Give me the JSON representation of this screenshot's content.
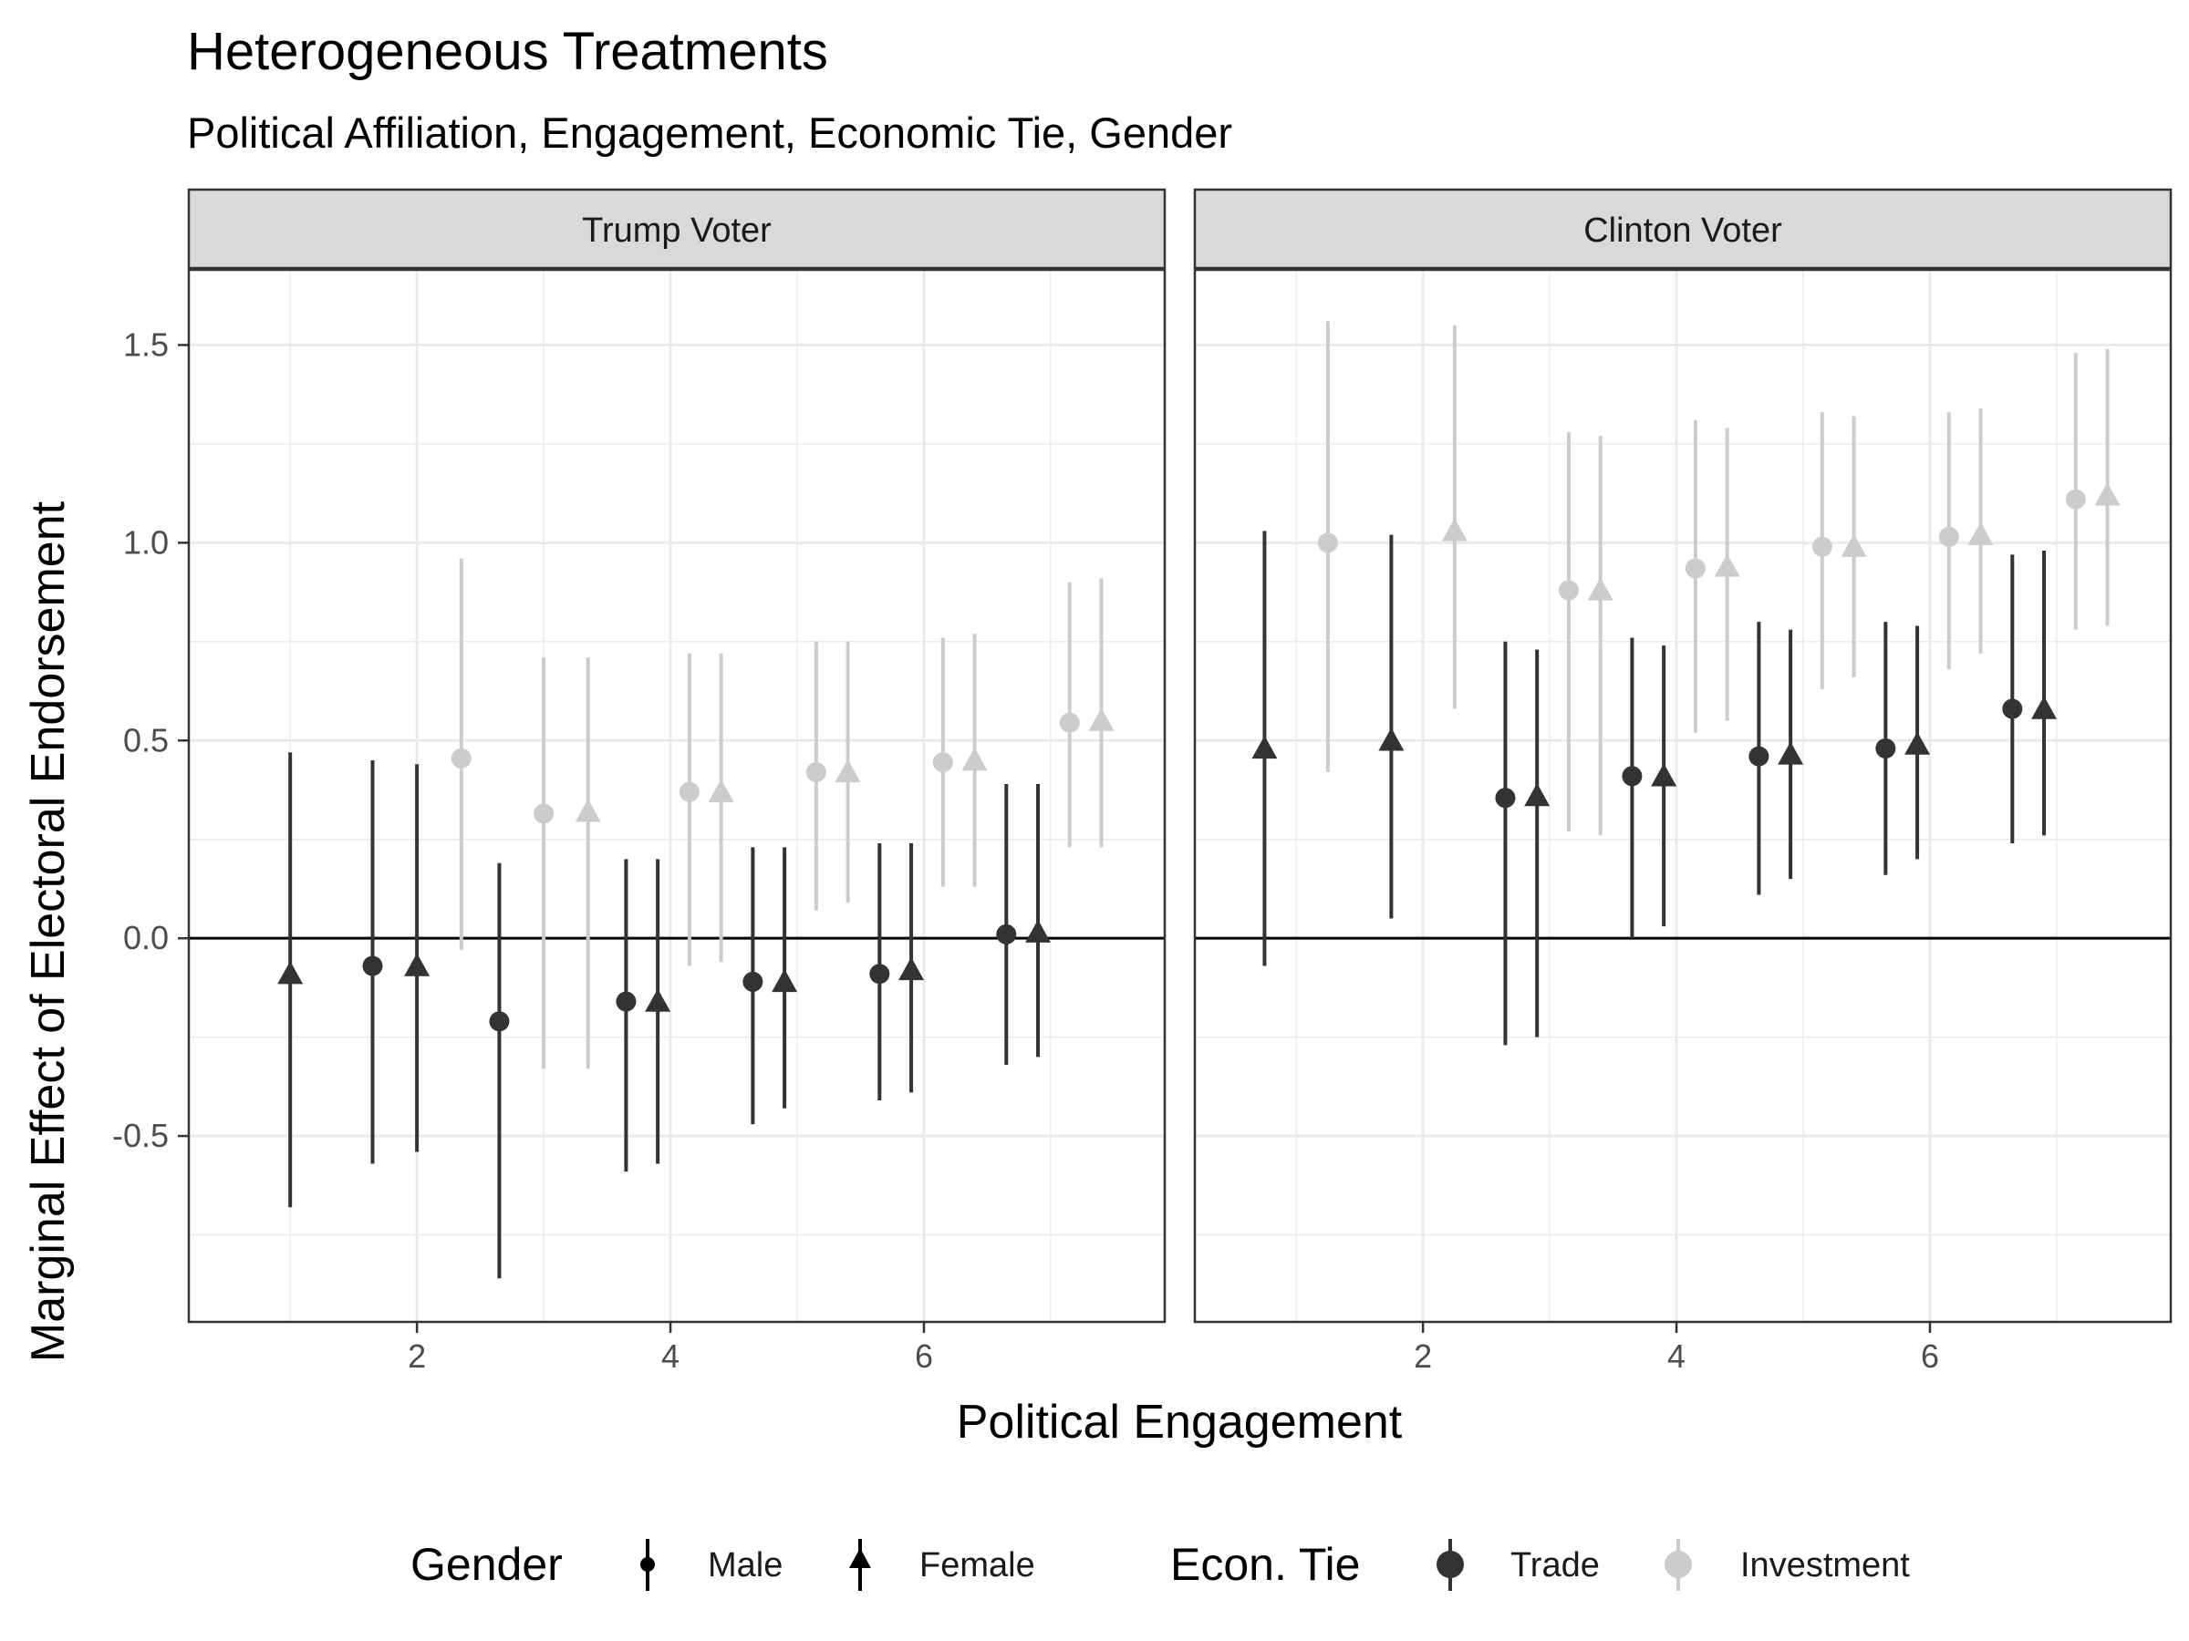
{
  "chart_data": {
    "type": "scatter",
    "title": "Heterogeneous Treatments",
    "subtitle": "Political Affiliation, Engagement, Economic Tie, Gender",
    "xlabel": "Political Engagement",
    "ylabel": "Marginal Effect of Electoral Endorsement",
    "xlim": [
      0.2,
      7.9
    ],
    "ylim": [
      -0.97,
      1.69
    ],
    "x_ticks": [
      2,
      4,
      6
    ],
    "y_ticks": [
      -0.5,
      0.0,
      0.5,
      1.0,
      1.5
    ],
    "x_tick_labels": [
      "2",
      "4",
      "6"
    ],
    "y_tick_labels": [
      "-0.5",
      "0.0",
      "0.5",
      "1.0",
      "1.5"
    ],
    "reference_line_y": 0,
    "grid": true,
    "legend_position": "bottom",
    "colors": {
      "Trade": "#333333",
      "Investment": "#cccccc"
    },
    "legend": {
      "gender_title": "Gender",
      "gender_items": [
        "Male",
        "Female"
      ],
      "econ_title": "Econ. Tie",
      "econ_items": [
        "Trade",
        "Investment"
      ]
    },
    "panels": [
      {
        "label": "Trump Voter",
        "points": [
          {
            "x": 1.0,
            "y": -0.09,
            "lo": -0.68,
            "hi": 0.47,
            "gender": "Female",
            "tie": "Trade"
          },
          {
            "x": 1.65,
            "y": -0.07,
            "lo": -0.57,
            "hi": 0.45,
            "gender": "Male",
            "tie": "Trade"
          },
          {
            "x": 2.0,
            "y": -0.07,
            "lo": -0.54,
            "hi": 0.44,
            "gender": "Female",
            "tie": "Trade"
          },
          {
            "x": 2.35,
            "y": 0.455,
            "lo": -0.03,
            "hi": 0.96,
            "gender": "Male",
            "tie": "Investment"
          },
          {
            "x": 2.65,
            "y": -0.21,
            "lo": -0.86,
            "hi": 0.19,
            "gender": "Male",
            "tie": "Trade"
          },
          {
            "x": 3.0,
            "y": 0.315,
            "lo": -0.33,
            "hi": 0.71,
            "gender": "Male",
            "tie": "Investment"
          },
          {
            "x": 3.35,
            "y": 0.32,
            "lo": -0.33,
            "hi": 0.71,
            "gender": "Female",
            "tie": "Investment"
          },
          {
            "x": 3.65,
            "y": -0.16,
            "lo": -0.59,
            "hi": 0.2,
            "gender": "Male",
            "tie": "Trade"
          },
          {
            "x": 3.9,
            "y": -0.16,
            "lo": -0.57,
            "hi": 0.2,
            "gender": "Female",
            "tie": "Trade"
          },
          {
            "x": 4.15,
            "y": 0.37,
            "lo": -0.07,
            "hi": 0.72,
            "gender": "Male",
            "tie": "Investment"
          },
          {
            "x": 4.4,
            "y": 0.37,
            "lo": -0.06,
            "hi": 0.72,
            "gender": "Female",
            "tie": "Investment"
          },
          {
            "x": 4.65,
            "y": -0.11,
            "lo": -0.47,
            "hi": 0.23,
            "gender": "Male",
            "tie": "Trade"
          },
          {
            "x": 4.9,
            "y": -0.11,
            "lo": -0.43,
            "hi": 0.23,
            "gender": "Female",
            "tie": "Trade"
          },
          {
            "x": 5.15,
            "y": 0.42,
            "lo": 0.07,
            "hi": 0.75,
            "gender": "Male",
            "tie": "Investment"
          },
          {
            "x": 5.4,
            "y": 0.42,
            "lo": 0.09,
            "hi": 0.75,
            "gender": "Female",
            "tie": "Investment"
          },
          {
            "x": 5.65,
            "y": -0.09,
            "lo": -0.41,
            "hi": 0.24,
            "gender": "Male",
            "tie": "Trade"
          },
          {
            "x": 5.9,
            "y": -0.08,
            "lo": -0.39,
            "hi": 0.24,
            "gender": "Female",
            "tie": "Trade"
          },
          {
            "x": 6.15,
            "y": 0.445,
            "lo": 0.13,
            "hi": 0.76,
            "gender": "Male",
            "tie": "Investment"
          },
          {
            "x": 6.4,
            "y": 0.45,
            "lo": 0.13,
            "hi": 0.77,
            "gender": "Female",
            "tie": "Investment"
          },
          {
            "x": 6.65,
            "y": 0.01,
            "lo": -0.32,
            "hi": 0.39,
            "gender": "Male",
            "tie": "Trade"
          },
          {
            "x": 6.9,
            "y": 0.015,
            "lo": -0.3,
            "hi": 0.39,
            "gender": "Female",
            "tie": "Trade"
          },
          {
            "x": 7.15,
            "y": 0.545,
            "lo": 0.23,
            "hi": 0.9,
            "gender": "Male",
            "tie": "Investment"
          },
          {
            "x": 7.4,
            "y": 0.55,
            "lo": 0.23,
            "hi": 0.91,
            "gender": "Female",
            "tie": "Investment"
          }
        ]
      },
      {
        "label": "Clinton Voter",
        "points": [
          {
            "x": 0.75,
            "y": 0.48,
            "lo": -0.07,
            "hi": 1.03,
            "gender": "Female",
            "tie": "Trade"
          },
          {
            "x": 1.25,
            "y": 1.0,
            "lo": 0.42,
            "hi": 1.56,
            "gender": "Male",
            "tie": "Investment"
          },
          {
            "x": 1.75,
            "y": 0.5,
            "lo": 0.05,
            "hi": 1.02,
            "gender": "Female",
            "tie": "Trade"
          },
          {
            "x": 2.25,
            "y": 1.03,
            "lo": 0.58,
            "hi": 1.55,
            "gender": "Female",
            "tie": "Investment"
          },
          {
            "x": 2.65,
            "y": 0.355,
            "lo": -0.27,
            "hi": 0.75,
            "gender": "Male",
            "tie": "Trade"
          },
          {
            "x": 2.9,
            "y": 0.36,
            "lo": -0.25,
            "hi": 0.73,
            "gender": "Female",
            "tie": "Trade"
          },
          {
            "x": 3.15,
            "y": 0.88,
            "lo": 0.27,
            "hi": 1.28,
            "gender": "Male",
            "tie": "Investment"
          },
          {
            "x": 3.4,
            "y": 0.88,
            "lo": 0.26,
            "hi": 1.27,
            "gender": "Female",
            "tie": "Investment"
          },
          {
            "x": 3.65,
            "y": 0.41,
            "lo": 0.0,
            "hi": 0.76,
            "gender": "Male",
            "tie": "Trade"
          },
          {
            "x": 3.9,
            "y": 0.41,
            "lo": 0.03,
            "hi": 0.74,
            "gender": "Female",
            "tie": "Trade"
          },
          {
            "x": 4.15,
            "y": 0.935,
            "lo": 0.52,
            "hi": 1.31,
            "gender": "Male",
            "tie": "Investment"
          },
          {
            "x": 4.4,
            "y": 0.94,
            "lo": 0.55,
            "hi": 1.29,
            "gender": "Female",
            "tie": "Investment"
          },
          {
            "x": 4.65,
            "y": 0.46,
            "lo": 0.11,
            "hi": 0.8,
            "gender": "Male",
            "tie": "Trade"
          },
          {
            "x": 4.9,
            "y": 0.465,
            "lo": 0.15,
            "hi": 0.78,
            "gender": "Female",
            "tie": "Trade"
          },
          {
            "x": 5.15,
            "y": 0.99,
            "lo": 0.63,
            "hi": 1.33,
            "gender": "Male",
            "tie": "Investment"
          },
          {
            "x": 5.4,
            "y": 0.99,
            "lo": 0.66,
            "hi": 1.32,
            "gender": "Female",
            "tie": "Investment"
          },
          {
            "x": 5.65,
            "y": 0.48,
            "lo": 0.16,
            "hi": 0.8,
            "gender": "Male",
            "tie": "Trade"
          },
          {
            "x": 5.9,
            "y": 0.49,
            "lo": 0.2,
            "hi": 0.79,
            "gender": "Female",
            "tie": "Trade"
          },
          {
            "x": 6.15,
            "y": 1.015,
            "lo": 0.68,
            "hi": 1.33,
            "gender": "Male",
            "tie": "Investment"
          },
          {
            "x": 6.4,
            "y": 1.02,
            "lo": 0.72,
            "hi": 1.34,
            "gender": "Female",
            "tie": "Investment"
          },
          {
            "x": 6.65,
            "y": 0.58,
            "lo": 0.24,
            "hi": 0.97,
            "gender": "Male",
            "tie": "Trade"
          },
          {
            "x": 6.9,
            "y": 0.58,
            "lo": 0.26,
            "hi": 0.98,
            "gender": "Female",
            "tie": "Trade"
          },
          {
            "x": 7.15,
            "y": 1.11,
            "lo": 0.78,
            "hi": 1.48,
            "gender": "Male",
            "tie": "Investment"
          },
          {
            "x": 7.4,
            "y": 1.12,
            "lo": 0.79,
            "hi": 1.49,
            "gender": "Female",
            "tie": "Investment"
          }
        ]
      }
    ]
  }
}
